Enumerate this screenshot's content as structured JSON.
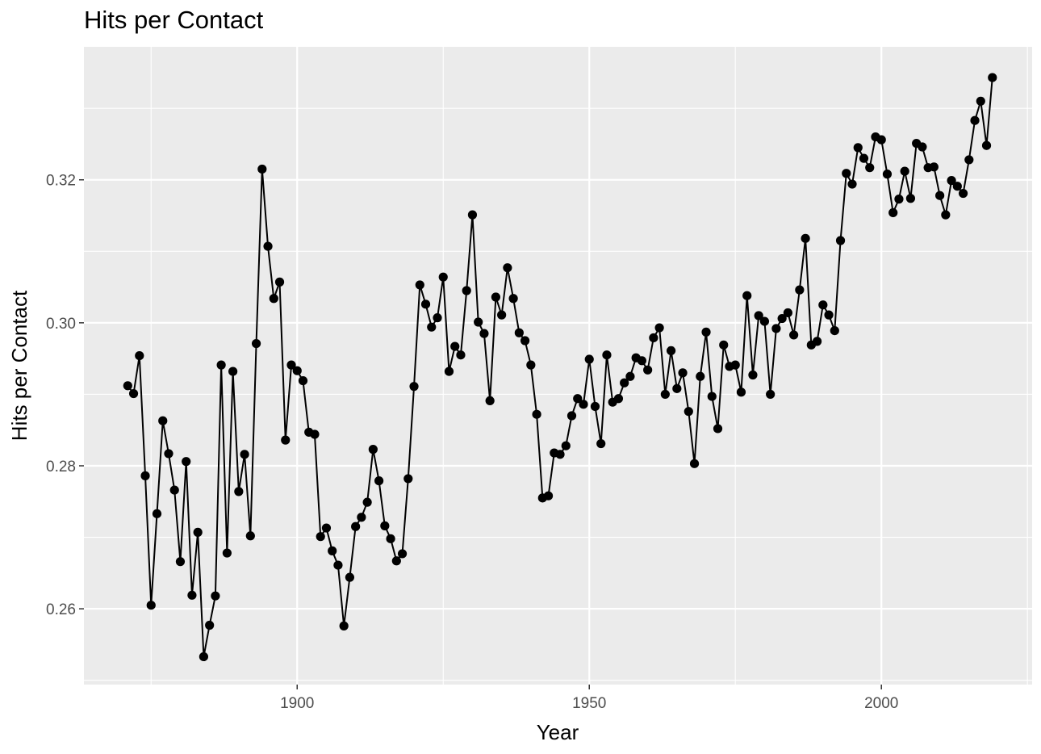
{
  "chart_data": {
    "type": "line",
    "title": "Hits per Contact",
    "xlabel": "Year",
    "ylabel": "Hits per Contact",
    "xlim": [
      1863.5,
      2025.8
    ],
    "ylim": [
      0.2494,
      0.3386
    ],
    "x_ticks": [
      1900,
      1950,
      2000
    ],
    "x_tick_labels": [
      "1900",
      "1950",
      "2000"
    ],
    "y_ticks": [
      0.26,
      0.28,
      0.3,
      0.32
    ],
    "y_tick_labels": [
      "0.26",
      "0.28",
      "0.30",
      "0.32"
    ],
    "grid": true,
    "markers": true,
    "panel_background": "#ebebeb",
    "line_color": "#000000",
    "series": [
      {
        "x": [
          1871,
          1872,
          1873,
          1874,
          1875,
          1876,
          1877,
          1878,
          1879,
          1880,
          1881,
          1882,
          1883,
          1884,
          1885,
          1886,
          1887,
          1888,
          1889,
          1890,
          1891,
          1892,
          1893,
          1894,
          1895,
          1896,
          1897,
          1898,
          1899,
          1900,
          1901,
          1902,
          1903,
          1904,
          1905,
          1906,
          1907,
          1908,
          1909,
          1910,
          1911,
          1912,
          1913,
          1914,
          1915,
          1916,
          1917,
          1918,
          1919,
          1920,
          1921,
          1922,
          1923,
          1924,
          1925,
          1926,
          1927,
          1928,
          1929,
          1930,
          1931,
          1932,
          1933,
          1934,
          1935,
          1936,
          1937,
          1938,
          1939,
          1940,
          1941,
          1942,
          1943,
          1944,
          1945,
          1946,
          1947,
          1948,
          1949,
          1950,
          1951,
          1952,
          1953,
          1954,
          1955,
          1956,
          1957,
          1958,
          1959,
          1960,
          1961,
          1962,
          1963,
          1964,
          1965,
          1966,
          1967,
          1968,
          1969,
          1970,
          1971,
          1972,
          1973,
          1974,
          1975,
          1976,
          1977,
          1978,
          1979,
          1980,
          1981,
          1982,
          1983,
          1984,
          1985,
          1986,
          1987,
          1988,
          1989,
          1990,
          1991,
          1992,
          1993,
          1994,
          1995,
          1996,
          1997,
          1998,
          1999,
          2000,
          2001,
          2002,
          2003,
          2004,
          2005,
          2006,
          2007,
          2008,
          2009,
          2010,
          2011,
          2012,
          2013,
          2014,
          2015,
          2016,
          2017,
          2018,
          2019
        ],
        "y": [
          0.2912,
          0.2901,
          0.2954,
          0.2786,
          0.2605,
          0.2733,
          0.2863,
          0.2817,
          0.2766,
          0.2666,
          0.2806,
          0.2619,
          0.2707,
          0.2533,
          0.2577,
          0.2618,
          0.2941,
          0.2678,
          0.2932,
          0.2764,
          0.2816,
          0.2702,
          0.2971,
          0.3215,
          0.3107,
          0.3034,
          0.3057,
          0.2836,
          0.2941,
          0.2933,
          0.2919,
          0.2847,
          0.2844,
          0.2701,
          0.2713,
          0.2681,
          0.2661,
          0.2576,
          0.2644,
          0.2715,
          0.2728,
          0.2749,
          0.2823,
          0.2779,
          0.2716,
          0.2698,
          0.2667,
          0.2677,
          0.2782,
          0.2911,
          0.3053,
          0.3026,
          0.2994,
          0.3007,
          0.3064,
          0.2932,
          0.2967,
          0.2955,
          0.3045,
          0.3151,
          0.3001,
          0.2985,
          0.2891,
          0.3036,
          0.3011,
          0.3077,
          0.3034,
          0.2986,
          0.2975,
          0.2941,
          0.2872,
          0.2755,
          0.2758,
          0.2818,
          0.2816,
          0.2828,
          0.287,
          0.2894,
          0.2886,
          0.2949,
          0.2883,
          0.2831,
          0.2955,
          0.2889,
          0.2894,
          0.2916,
          0.2925,
          0.2951,
          0.2947,
          0.2934,
          0.2979,
          0.2993,
          0.29,
          0.2961,
          0.2908,
          0.293,
          0.2876,
          0.2803,
          0.2925,
          0.2987,
          0.2897,
          0.2852,
          0.2969,
          0.2939,
          0.2941,
          0.2903,
          0.3038,
          0.2927,
          0.301,
          0.3002,
          0.29,
          0.2992,
          0.3006,
          0.3014,
          0.2983,
          0.3046,
          0.3118,
          0.2969,
          0.2974,
          0.3025,
          0.3011,
          0.2989,
          0.3115,
          0.3209,
          0.3194,
          0.3245,
          0.323,
          0.3217,
          0.326,
          0.3256,
          0.3208,
          0.3154,
          0.3173,
          0.3212,
          0.3174,
          0.3251,
          0.3246,
          0.3217,
          0.3218,
          0.3178,
          0.3151,
          0.3199,
          0.3191,
          0.3181,
          0.3228,
          0.3283,
          0.331,
          0.3248,
          0.3343
        ]
      }
    ]
  }
}
